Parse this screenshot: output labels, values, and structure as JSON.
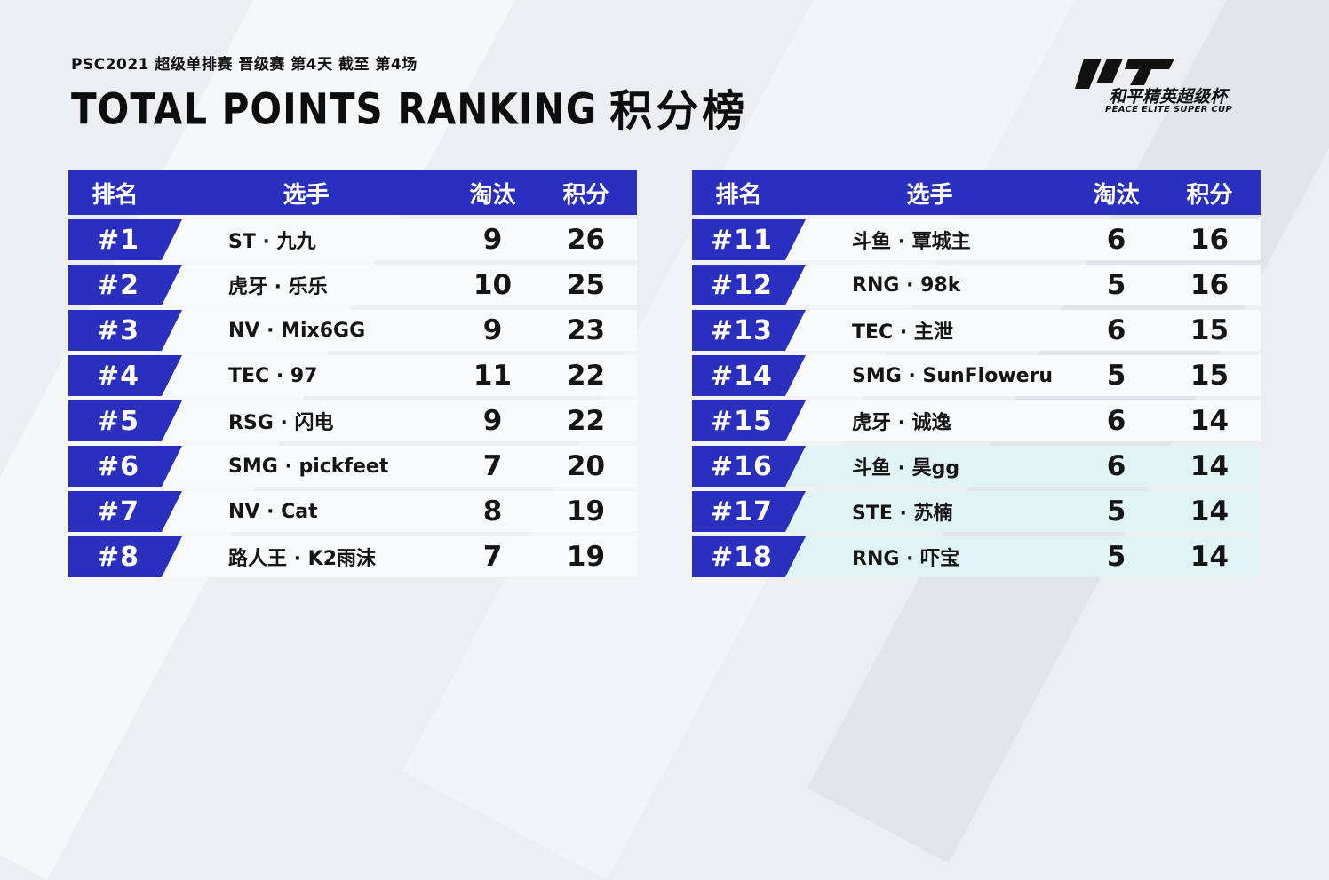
{
  "header": {
    "subtitle": "PSC2021  超级单排赛  晋级赛  第4天  截至  第4场",
    "title_en": "TOTAL POINTS RANKING",
    "title_cn": "积分榜"
  },
  "logo": {
    "cn": "和平精英超级杯",
    "en": "PEACE ELITE SUPER CUP"
  },
  "columns": {
    "rank": "排名",
    "player": "选手",
    "elim": "淘汰",
    "points": "积分"
  },
  "tables": {
    "left": [
      {
        "rank": "#1",
        "player": "ST · 九九",
        "elim": "9",
        "points": "26"
      },
      {
        "rank": "#2",
        "player": "虎牙 · 乐乐",
        "elim": "10",
        "points": "25"
      },
      {
        "rank": "#3",
        "player": "NV · Mix6GG",
        "elim": "9",
        "points": "23"
      },
      {
        "rank": "#4",
        "player": "TEC · 97",
        "elim": "11",
        "points": "22"
      },
      {
        "rank": "#5",
        "player": "RSG · 闪电",
        "elim": "9",
        "points": "22"
      },
      {
        "rank": "#6",
        "player": "SMG · pickfeet",
        "elim": "7",
        "points": "20"
      },
      {
        "rank": "#7",
        "player": "NV · Cat",
        "elim": "8",
        "points": "19"
      },
      {
        "rank": "#8",
        "player": "路人王 · K2雨沫",
        "elim": "7",
        "points": "19"
      }
    ],
    "right": [
      {
        "rank": "#11",
        "player": "斗鱼 · 覃城主",
        "elim": "6",
        "points": "16"
      },
      {
        "rank": "#12",
        "player": "RNG · 98k",
        "elim": "5",
        "points": "16"
      },
      {
        "rank": "#13",
        "player": "TEC · 主泄",
        "elim": "6",
        "points": "15"
      },
      {
        "rank": "#14",
        "player": "SMG · SunFloweru",
        "elim": "5",
        "points": "15"
      },
      {
        "rank": "#15",
        "player": "虎牙 · 诚逸",
        "elim": "6",
        "points": "14"
      },
      {
        "rank": "#16",
        "player": "斗鱼 · 昊gg",
        "elim": "6",
        "points": "14"
      },
      {
        "rank": "#17",
        "player": "STE · 苏楠",
        "elim": "5",
        "points": "14"
      },
      {
        "rank": "#18",
        "player": "RNG · 吓宝",
        "elim": "5",
        "points": "14"
      }
    ]
  },
  "colors": {
    "accent": "#2a2fbd",
    "row": "#f9fafb",
    "highlight": "#e0f4f5"
  }
}
